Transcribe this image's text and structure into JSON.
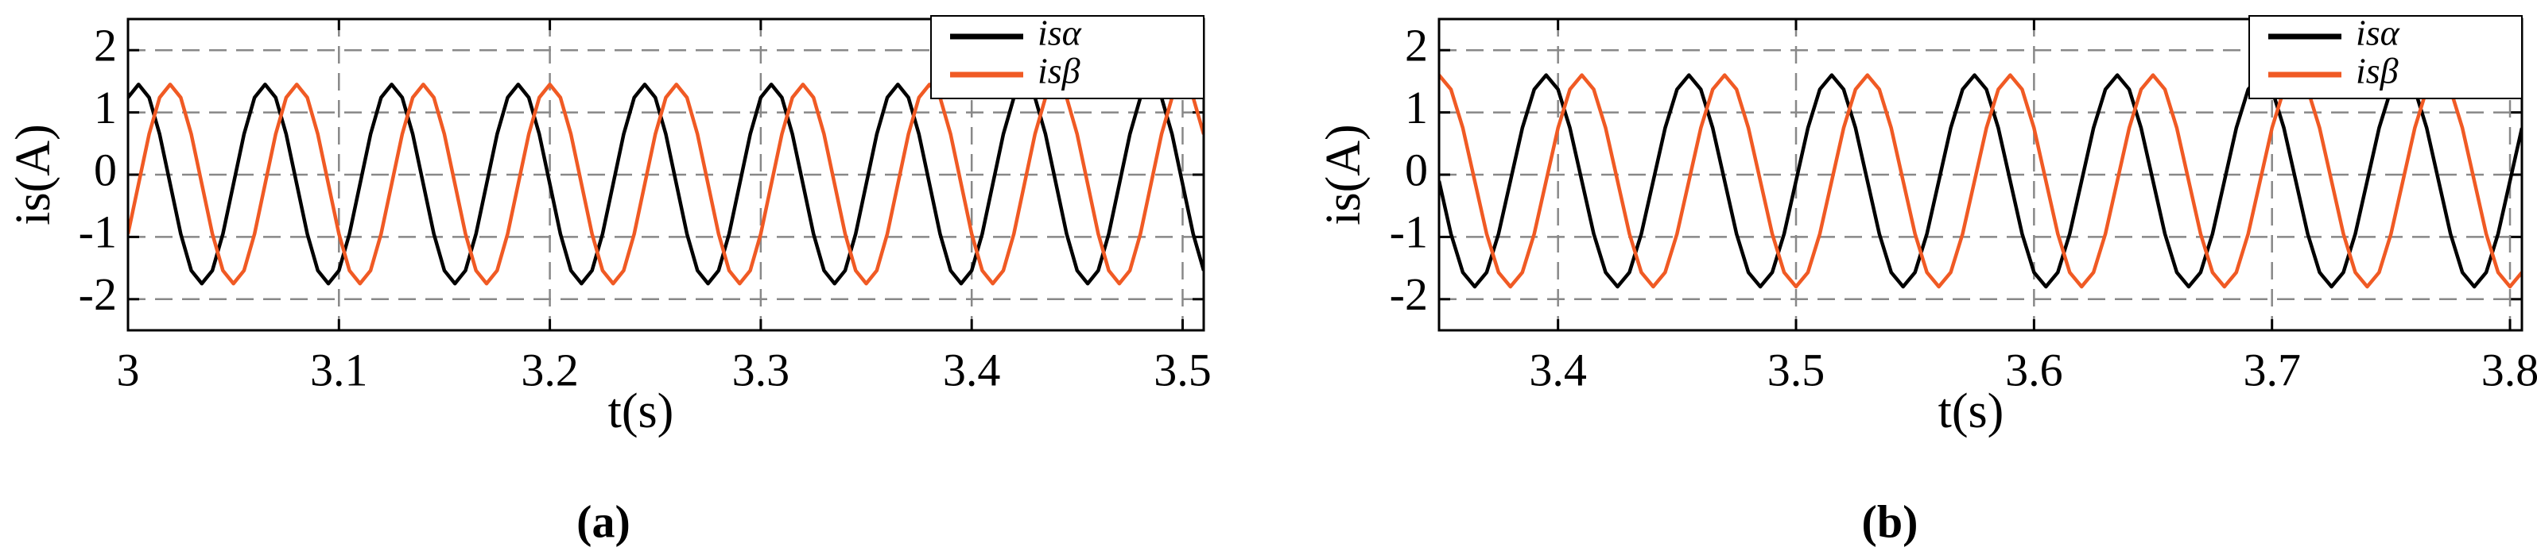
{
  "chart_data": [
    {
      "type": "line",
      "caption": "(a)",
      "x_label": "t(s)",
      "y_label": "is(A)",
      "x": [
        3,
        3.005,
        3.01,
        3.015,
        3.02,
        3.025,
        3.03,
        3.035,
        3.04,
        3.045,
        3.05,
        3.055,
        3.06,
        3.065,
        3.07,
        3.075,
        3.08,
        3.085,
        3.09,
        3.095,
        3.1,
        3.105,
        3.11,
        3.115,
        3.12,
        3.125,
        3.13,
        3.135,
        3.14,
        3.145,
        3.15,
        3.155,
        3.16,
        3.165,
        3.17,
        3.175,
        3.18,
        3.185,
        3.19,
        3.195,
        3.2,
        3.205,
        3.21,
        3.215,
        3.22,
        3.225,
        3.23,
        3.235,
        3.24,
        3.245,
        3.25,
        3.255,
        3.26,
        3.265,
        3.27,
        3.275,
        3.28,
        3.285,
        3.29,
        3.295,
        3.3,
        3.305,
        3.31,
        3.315,
        3.32,
        3.325,
        3.33,
        3.335,
        3.34,
        3.345,
        3.35,
        3.355,
        3.36,
        3.365,
        3.37,
        3.375,
        3.38,
        3.385,
        3.39,
        3.395,
        3.4,
        3.405,
        3.41,
        3.415,
        3.42,
        3.425,
        3.43,
        3.435,
        3.44,
        3.445,
        3.45,
        3.455,
        3.46,
        3.465,
        3.47,
        3.475,
        3.48,
        3.485,
        3.49,
        3.495,
        3.5,
        3.505,
        3.51
      ],
      "series": [
        {
          "name": "isα",
          "color": "#000000",
          "values": [
            1.24,
            1.45,
            1.24,
            0.65,
            -0.15,
            -0.95,
            -1.54,
            -1.75,
            -1.54,
            -0.95,
            -0.15,
            0.65,
            1.24,
            1.45,
            1.24,
            0.65,
            -0.15,
            -0.95,
            -1.54,
            -1.75,
            -1.54,
            -0.95,
            -0.15,
            0.65,
            1.24,
            1.45,
            1.24,
            0.65,
            -0.15,
            -0.95,
            -1.54,
            -1.75,
            -1.54,
            -0.95,
            -0.15,
            0.65,
            1.24,
            1.45,
            1.24,
            0.65,
            -0.15,
            -0.95,
            -1.54,
            -1.75,
            -1.54,
            -0.95,
            -0.15,
            0.65,
            1.24,
            1.45,
            1.24,
            0.65,
            -0.15,
            -0.95,
            -1.54,
            -1.75,
            -1.54,
            -0.95,
            -0.15,
            0.65,
            1.24,
            1.45,
            1.24,
            0.65,
            -0.15,
            -0.95,
            -1.54,
            -1.75,
            -1.54,
            -0.95,
            -0.15,
            0.65,
            1.24,
            1.45,
            1.24,
            0.65,
            -0.15,
            -0.95,
            -1.54,
            -1.75,
            -1.54,
            -0.95,
            -0.15,
            0.65,
            1.24,
            1.45,
            1.24,
            0.65,
            -0.15,
            -0.95,
            -1.54,
            -1.75,
            -1.54,
            -0.95,
            -0.15,
            0.65,
            1.24,
            1.45,
            1.24,
            0.65,
            -0.15,
            -0.95,
            -1.54
          ]
        },
        {
          "name": "isβ",
          "color": "#f05a24",
          "values": [
            -0.95,
            -0.15,
            0.65,
            1.24,
            1.45,
            1.24,
            0.65,
            -0.15,
            -0.95,
            -1.54,
            -1.75,
            -1.54,
            -0.95,
            -0.15,
            0.65,
            1.24,
            1.45,
            1.24,
            0.65,
            -0.15,
            -0.95,
            -1.54,
            -1.75,
            -1.54,
            -0.95,
            -0.15,
            0.65,
            1.24,
            1.45,
            1.24,
            0.65,
            -0.15,
            -0.95,
            -1.54,
            -1.75,
            -1.54,
            -0.95,
            -0.15,
            0.65,
            1.24,
            1.45,
            1.24,
            0.65,
            -0.15,
            -0.95,
            -1.54,
            -1.75,
            -1.54,
            -0.95,
            -0.15,
            0.65,
            1.24,
            1.45,
            1.24,
            0.65,
            -0.15,
            -0.95,
            -1.54,
            -1.75,
            -1.54,
            -0.95,
            -0.15,
            0.65,
            1.24,
            1.45,
            1.24,
            0.65,
            -0.15,
            -0.95,
            -1.54,
            -1.75,
            -1.54,
            -0.95,
            -0.15,
            0.65,
            1.24,
            1.45,
            1.24,
            0.65,
            -0.15,
            -0.95,
            -1.54,
            -1.75,
            -1.54,
            -0.95,
            -0.15,
            0.65,
            1.24,
            1.45,
            1.24,
            0.65,
            -0.15,
            -0.95,
            -1.54,
            -1.75,
            -1.54,
            -0.95,
            -0.15,
            0.65,
            1.24,
            1.45,
            1.24,
            0.65
          ]
        }
      ],
      "xlim": [
        3,
        3.51
      ],
      "xticks": [
        3,
        3.1,
        3.2,
        3.3,
        3.4,
        3.5
      ],
      "ylim": [
        -2.5,
        2.5
      ],
      "yticks": [
        -2,
        -1,
        0,
        1,
        2
      ],
      "grid": true,
      "legend": "upper right"
    },
    {
      "type": "line",
      "caption": "(b)",
      "x_label": "t(s)",
      "y_label": "is(A)",
      "x": [
        3.35,
        3.355,
        3.36,
        3.365,
        3.37,
        3.375,
        3.38,
        3.385,
        3.39,
        3.395,
        3.4,
        3.405,
        3.41,
        3.415,
        3.42,
        3.425,
        3.43,
        3.435,
        3.44,
        3.445,
        3.45,
        3.455,
        3.46,
        3.465,
        3.47,
        3.475,
        3.48,
        3.485,
        3.49,
        3.495,
        3.5,
        3.505,
        3.51,
        3.515,
        3.52,
        3.525,
        3.53,
        3.535,
        3.54,
        3.545,
        3.55,
        3.555,
        3.56,
        3.565,
        3.57,
        3.575,
        3.58,
        3.585,
        3.59,
        3.595,
        3.6,
        3.605,
        3.61,
        3.615,
        3.62,
        3.625,
        3.63,
        3.635,
        3.64,
        3.645,
        3.65,
        3.655,
        3.66,
        3.665,
        3.67,
        3.675,
        3.68,
        3.685,
        3.69,
        3.695,
        3.7,
        3.705,
        3.71,
        3.715,
        3.72,
        3.725,
        3.73,
        3.735,
        3.74,
        3.745,
        3.75,
        3.755,
        3.76,
        3.765,
        3.77,
        3.775,
        3.78,
        3.785,
        3.79,
        3.795,
        3.8,
        3.805
      ],
      "series": [
        {
          "name": "isα",
          "color": "#000000",
          "values": [
            -0.1,
            -0.95,
            -1.57,
            -1.8,
            -1.57,
            -0.95,
            -0.1,
            0.75,
            1.37,
            1.6,
            1.37,
            0.75,
            -0.1,
            -0.95,
            -1.57,
            -1.8,
            -1.57,
            -0.95,
            -0.1,
            0.75,
            1.37,
            1.6,
            1.37,
            0.75,
            -0.1,
            -0.95,
            -1.57,
            -1.8,
            -1.57,
            -0.95,
            -0.1,
            0.75,
            1.37,
            1.6,
            1.37,
            0.75,
            -0.1,
            -0.95,
            -1.57,
            -1.8,
            -1.57,
            -0.95,
            -0.1,
            0.75,
            1.37,
            1.6,
            1.37,
            0.75,
            -0.1,
            -0.95,
            -1.57,
            -1.8,
            -1.57,
            -0.95,
            -0.1,
            0.75,
            1.37,
            1.6,
            1.37,
            0.75,
            -0.1,
            -0.95,
            -1.57,
            -1.8,
            -1.57,
            -0.95,
            -0.1,
            0.75,
            1.37,
            1.6,
            1.37,
            0.75,
            -0.1,
            -0.95,
            -1.57,
            -1.8,
            -1.57,
            -0.95,
            -0.1,
            0.75,
            1.37,
            1.6,
            1.37,
            0.75,
            -0.1,
            -0.95,
            -1.57,
            -1.8,
            -1.57,
            -0.95,
            -0.1,
            0.75
          ]
        },
        {
          "name": "isβ",
          "color": "#f05a24",
          "values": [
            1.6,
            1.37,
            0.75,
            -0.1,
            -0.95,
            -1.57,
            -1.8,
            -1.57,
            -0.95,
            -0.1,
            0.75,
            1.37,
            1.6,
            1.37,
            0.75,
            -0.1,
            -0.95,
            -1.57,
            -1.8,
            -1.57,
            -0.95,
            -0.1,
            0.75,
            1.37,
            1.6,
            1.37,
            0.75,
            -0.1,
            -0.95,
            -1.57,
            -1.8,
            -1.57,
            -0.95,
            -0.1,
            0.75,
            1.37,
            1.6,
            1.37,
            0.75,
            -0.1,
            -0.95,
            -1.57,
            -1.8,
            -1.57,
            -0.95,
            -0.1,
            0.75,
            1.37,
            1.6,
            1.37,
            0.75,
            -0.1,
            -0.95,
            -1.57,
            -1.8,
            -1.57,
            -0.95,
            -0.1,
            0.75,
            1.37,
            1.6,
            1.37,
            0.75,
            -0.1,
            -0.95,
            -1.57,
            -1.8,
            -1.57,
            -0.95,
            -0.1,
            0.75,
            1.37,
            1.6,
            1.37,
            0.75,
            -0.1,
            -0.95,
            -1.57,
            -1.8,
            -1.57,
            -0.95,
            -0.1,
            0.75,
            1.37,
            1.6,
            1.37,
            0.75,
            -0.1,
            -0.95,
            -1.57,
            -1.8,
            -1.57
          ]
        }
      ],
      "xlim": [
        3.35,
        3.805
      ],
      "xticks": [
        3.4,
        3.5,
        3.6,
        3.7,
        3.8
      ],
      "ylim": [
        -2.5,
        2.5
      ],
      "yticks": [
        -2,
        -1,
        0,
        1,
        2
      ],
      "grid": true,
      "legend": "upper right"
    }
  ]
}
